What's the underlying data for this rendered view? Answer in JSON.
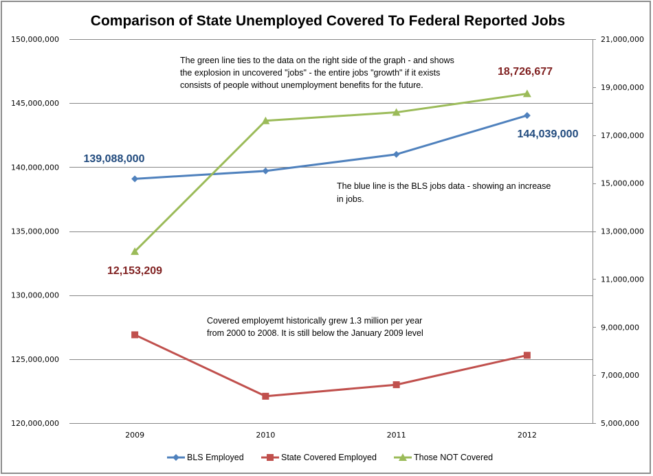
{
  "chart_data": {
    "type": "line",
    "title": "Comparison of State Unemployed Covered To Federal Reported Jobs",
    "xlabel": "",
    "ylabel": "",
    "categories": [
      "2009",
      "2010",
      "2011",
      "2012"
    ],
    "y_left": {
      "range": [
        120000000,
        150000000
      ],
      "ticks": [
        120000000,
        125000000,
        130000000,
        135000000,
        140000000,
        145000000,
        150000000
      ],
      "tick_labels": [
        "120,000,000",
        "125,000,000",
        "130,000,000",
        "135,000,000",
        "140,000,000",
        "145,000,000",
        "150,000,000"
      ]
    },
    "y_right": {
      "range": [
        5000000,
        21000000
      ],
      "ticks": [
        5000000,
        7000000,
        9000000,
        11000000,
        13000000,
        15000000,
        17000000,
        19000000,
        21000000
      ],
      "tick_labels": [
        "5,000,000",
        "7,000,000",
        "9,000,000",
        "11,000,000",
        "13,000,000",
        "15,000,000",
        "17,000,000",
        "19,000,000",
        "21,000,000"
      ]
    },
    "grid": true,
    "legend_position": "bottom",
    "series": [
      {
        "name": "BLS Employed",
        "axis": "left",
        "color": "#4f81bd",
        "marker": "diamond",
        "values": [
          139088000,
          139700000,
          141000000,
          144039000
        ]
      },
      {
        "name": "State Covered Employed",
        "axis": "left",
        "color": "#c0504d",
        "marker": "square",
        "values": [
          126900000,
          122100000,
          123000000,
          125300000
        ]
      },
      {
        "name": "Those NOT Covered",
        "axis": "right",
        "color": "#9bbb59",
        "marker": "triangle",
        "values": [
          12153209,
          17600000,
          17950000,
          18726677
        ]
      }
    ],
    "data_labels": [
      {
        "text": "139,088,000",
        "color": "#1f497d"
      },
      {
        "text": "144,039,000",
        "color": "#1f497d"
      },
      {
        "text": "12,153,209",
        "color": "#7f1f1f"
      },
      {
        "text": "18,726,677",
        "color": "#7f1f1f"
      }
    ],
    "annotations": [
      {
        "lines": [
          "The green line ties to the data  on the right side of the graph - and shows",
          "the explosion in uncovered \"jobs\" - the entire jobs \"growth\" if it exists",
          "consists of people without unemployment benefits for the future."
        ]
      },
      {
        "lines": [
          "The blue line is the BLS  jobs data - showing an increase",
          "in jobs."
        ]
      },
      {
        "lines": [
          "Covered employemt historically grew 1.3  million per year",
          "from 2000  to 2008.  It is still below the January 2009  level"
        ]
      }
    ]
  }
}
